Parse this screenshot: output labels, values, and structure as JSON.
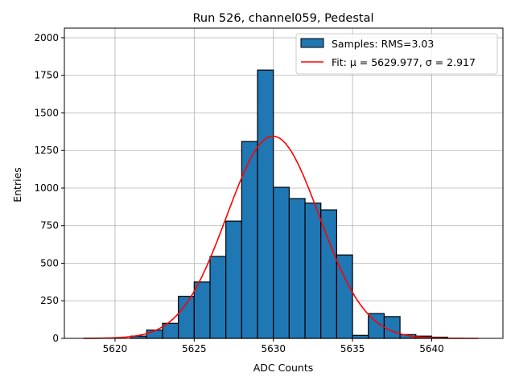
{
  "chart_data": {
    "type": "bar",
    "title": "Run 526, channel059, Pedestal",
    "xlabel": "ADC Counts",
    "ylabel": "Entries",
    "xlim": [
      5616.8,
      5644.5
    ],
    "ylim": [
      0,
      2064
    ],
    "xticks": [
      5620,
      5625,
      5630,
      5635,
      5640
    ],
    "yticks": [
      0,
      250,
      500,
      750,
      1000,
      1250,
      1500,
      1750,
      2000
    ],
    "grid": true,
    "legend_position": "top-right",
    "bin_width": 1,
    "bins": [
      5621,
      5622,
      5623,
      5624,
      5625,
      5626,
      5627,
      5628,
      5629,
      5630,
      5631,
      5632,
      5633,
      5634,
      5635,
      5636,
      5637,
      5638,
      5639,
      5640
    ],
    "values": [
      15,
      55,
      100,
      280,
      375,
      545,
      780,
      1310,
      1785,
      1005,
      930,
      900,
      855,
      555,
      20,
      165,
      145,
      25,
      15,
      8
    ],
    "series": [
      {
        "name": "Samples: RMS=3.03",
        "kind": "histogram",
        "color": "#1f77b4"
      },
      {
        "name": "Fit: μ = 5629.977, σ = 2.917",
        "kind": "gaussian",
        "color": "#ff0000",
        "mu": 5629.977,
        "sigma": 2.917,
        "amplitude": 1345,
        "range": [
          5618,
          5643
        ]
      }
    ]
  }
}
